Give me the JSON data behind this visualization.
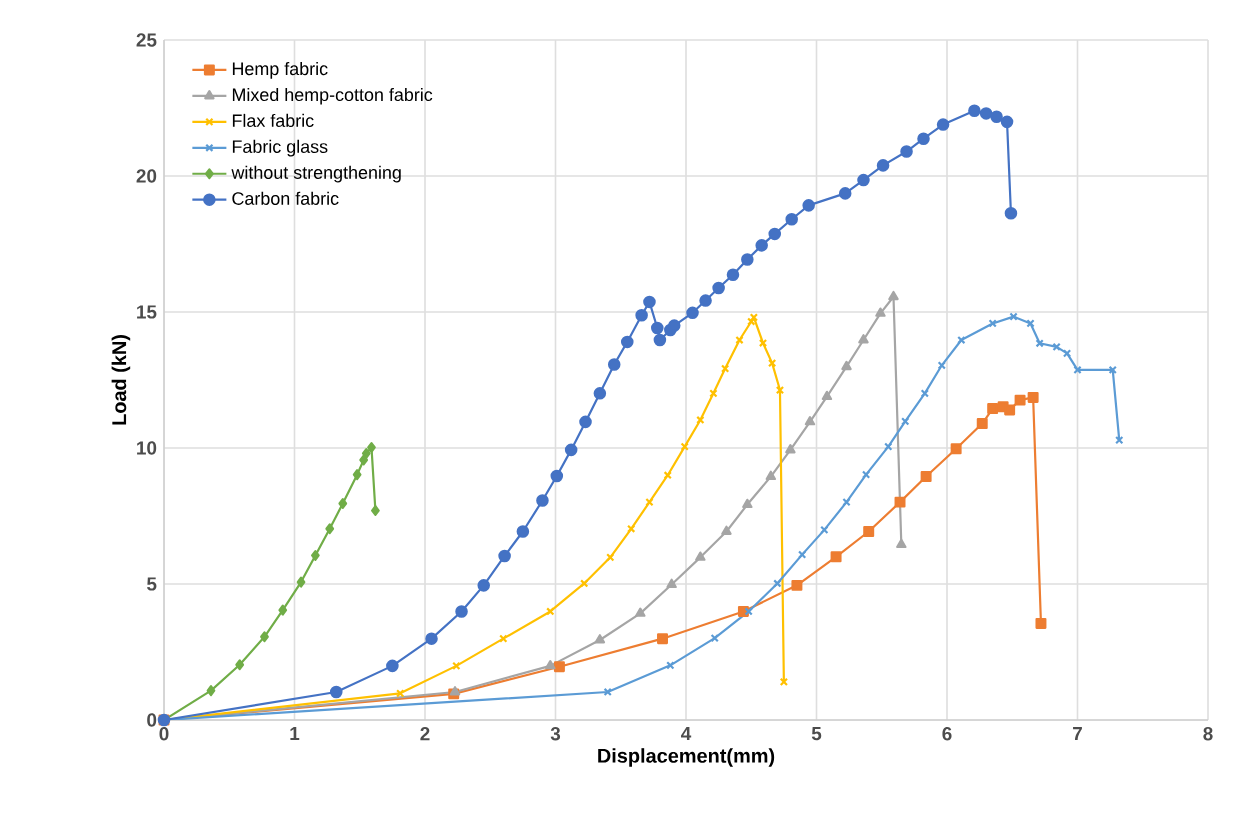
{
  "chart_data": {
    "type": "line",
    "xlabel": "Displacement(mm)",
    "ylabel": "Load (kN)",
    "xlim": [
      0,
      8
    ],
    "xticks": [
      0,
      1,
      2,
      3,
      4,
      5,
      6,
      7,
      8
    ],
    "ylim": [
      0,
      25
    ],
    "yticks": [
      0,
      5,
      10,
      15,
      20,
      25
    ],
    "grid": true,
    "legend": "top left",
    "line_style": "solid",
    "series": [
      {
        "name": "Hemp fabric",
        "color": "#ed7d31",
        "marker": "square",
        "x": [
          0,
          2.22,
          3.03,
          3.82,
          4.44,
          4.85,
          5.15,
          5.4,
          5.64,
          5.84,
          6.07,
          6.27,
          6.35,
          6.43,
          6.48,
          6.56,
          6.66,
          6.72
        ],
        "values": [
          0,
          0.96,
          1.96,
          2.99,
          3.99,
          4.95,
          6.0,
          6.93,
          8.01,
          8.95,
          9.97,
          10.9,
          11.45,
          11.52,
          11.4,
          11.76,
          11.86,
          3.55
        ]
      },
      {
        "name": "Mixed hemp-cotton fabric",
        "color": "#a5a5a5",
        "marker": "triangle",
        "x": [
          0,
          2.23,
          2.96,
          3.34,
          3.65,
          3.89,
          4.11,
          4.31,
          4.47,
          4.65,
          4.8,
          4.95,
          5.08,
          5.23,
          5.36,
          5.49,
          5.59,
          5.65
        ],
        "values": [
          0,
          1.03,
          1.99,
          2.94,
          3.92,
          4.98,
          5.98,
          6.93,
          7.92,
          8.95,
          9.93,
          10.96,
          11.89,
          12.99,
          13.97,
          14.95,
          15.56,
          6.45
        ]
      },
      {
        "name": "Flax fabric",
        "color": "#ffc000",
        "marker": "cross",
        "x": [
          0,
          1.81,
          2.24,
          2.6,
          2.96,
          3.22,
          3.42,
          3.58,
          3.72,
          3.86,
          3.99,
          4.11,
          4.21,
          4.3,
          4.41,
          4.5,
          4.52,
          4.59,
          4.66,
          4.72,
          4.75
        ],
        "values": [
          0,
          0.98,
          1.99,
          2.99,
          3.99,
          5.02,
          5.98,
          7.03,
          8.01,
          9.0,
          10.05,
          11.03,
          12.01,
          12.92,
          13.97,
          14.65,
          14.8,
          13.86,
          13.12,
          12.13,
          1.4
        ]
      },
      {
        "name": "Fabric glass",
        "color": "#5b9bd5",
        "marker": "cross",
        "x": [
          0,
          3.4,
          3.88,
          4.22,
          4.48,
          4.7,
          4.89,
          5.06,
          5.23,
          5.38,
          5.55,
          5.68,
          5.83,
          5.96,
          6.11,
          6.35,
          6.51,
          6.64,
          6.71,
          6.84,
          6.92,
          7.0,
          7.27,
          7.32
        ],
        "values": [
          0,
          1.03,
          2.01,
          3.01,
          3.99,
          5.02,
          6.08,
          6.99,
          8.01,
          9.02,
          10.05,
          10.98,
          12.01,
          13.04,
          13.97,
          14.58,
          14.83,
          14.58,
          13.85,
          13.72,
          13.48,
          12.87,
          12.87,
          10.29
        ]
      },
      {
        "name": "without strengthening",
        "color": "#70ad47",
        "marker": "diamond",
        "x": [
          0,
          0.36,
          0.58,
          0.77,
          0.91,
          1.05,
          1.16,
          1.27,
          1.37,
          1.48,
          1.53,
          1.55,
          1.59,
          1.62
        ],
        "values": [
          0,
          1.08,
          2.03,
          3.06,
          4.04,
          5.07,
          6.05,
          7.03,
          7.96,
          9.02,
          9.56,
          9.8,
          10.02,
          7.7
        ]
      },
      {
        "name": "Carbon fabric",
        "color": "#4472c4",
        "marker": "circle",
        "x": [
          0,
          1.32,
          1.75,
          2.05,
          2.28,
          2.45,
          2.61,
          2.75,
          2.9,
          3.01,
          3.12,
          3.23,
          3.34,
          3.45,
          3.55,
          3.66,
          3.72,
          3.78,
          3.8,
          3.88,
          3.91,
          4.05,
          4.15,
          4.25,
          4.36,
          4.47,
          4.58,
          4.68,
          4.81,
          4.94,
          5.22,
          5.36,
          5.51,
          5.69,
          5.82,
          5.97,
          6.21,
          6.3,
          6.38,
          6.46,
          6.49
        ],
        "values": [
          0,
          1.03,
          1.99,
          2.99,
          3.99,
          4.95,
          6.03,
          6.93,
          8.07,
          8.97,
          9.93,
          10.96,
          12.01,
          13.07,
          13.9,
          14.88,
          15.37,
          14.41,
          13.97,
          14.34,
          14.5,
          14.97,
          15.42,
          15.88,
          16.37,
          16.93,
          17.45,
          17.87,
          18.41,
          18.92,
          19.36,
          19.85,
          20.39,
          20.9,
          21.37,
          21.89,
          22.4,
          22.3,
          22.18,
          21.99,
          18.63
        ]
      }
    ]
  }
}
